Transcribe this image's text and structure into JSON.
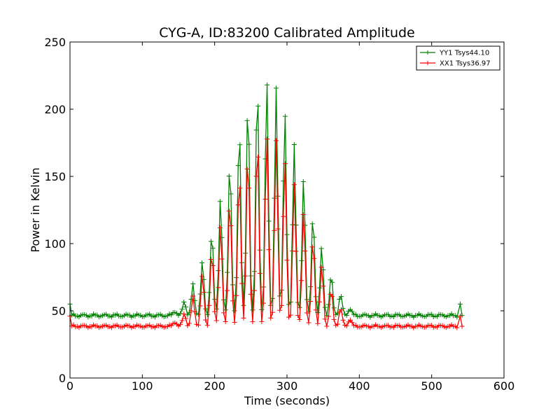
{
  "chart_data": {
    "type": "line",
    "title": "CYG-A, ID:83200 Calibrated Amplitude",
    "xlabel": "Time (seconds)",
    "ylabel": "Power in Kelvin",
    "xlim": [
      0,
      600
    ],
    "ylim": [
      0,
      250
    ],
    "xticks": [
      "0",
      "100",
      "200",
      "300",
      "400",
      "500",
      "600"
    ],
    "yticks": [
      "0",
      "50",
      "100",
      "150",
      "200",
      "250"
    ],
    "grid": false,
    "legend_position": "top-right",
    "sample_interval_s": 2.5,
    "series": [
      {
        "name": "YY1 Tsys44.10",
        "color": "#008000",
        "baseline": 46.5,
        "start": {
          "x": 0,
          "y": 55
        },
        "end": {
          "x": 537,
          "y": 55
        },
        "peaks": [
          {
            "x": 145,
            "y": 50
          },
          {
            "x": 158,
            "y": 57
          },
          {
            "x": 170,
            "y": 69
          },
          {
            "x": 183,
            "y": 86
          },
          {
            "x": 196,
            "y": 108
          },
          {
            "x": 208,
            "y": 134
          },
          {
            "x": 221,
            "y": 162
          },
          {
            "x": 234,
            "y": 188
          },
          {
            "x": 246,
            "y": 207
          },
          {
            "x": 259,
            "y": 219
          },
          {
            "x": 272,
            "y": 222
          },
          {
            "x": 285,
            "y": 215
          },
          {
            "x": 297,
            "y": 199
          },
          {
            "x": 310,
            "y": 175
          },
          {
            "x": 323,
            "y": 149
          },
          {
            "x": 336,
            "y": 121
          },
          {
            "x": 348,
            "y": 97
          },
          {
            "x": 361,
            "y": 76
          },
          {
            "x": 374,
            "y": 62
          },
          {
            "x": 387,
            "y": 52
          }
        ]
      },
      {
        "name": "XX1 Tsys36.97",
        "color": "#ff0000",
        "baseline": 38.5,
        "start": {
          "x": 0,
          "y": 46
        },
        "end": {
          "x": 537,
          "y": 46
        },
        "peaks": [
          {
            "x": 145,
            "y": 42
          },
          {
            "x": 158,
            "y": 48
          },
          {
            "x": 170,
            "y": 60
          },
          {
            "x": 183,
            "y": 76
          },
          {
            "x": 196,
            "y": 94
          },
          {
            "x": 208,
            "y": 114
          },
          {
            "x": 221,
            "y": 134
          },
          {
            "x": 234,
            "y": 153
          },
          {
            "x": 246,
            "y": 168
          },
          {
            "x": 259,
            "y": 178
          },
          {
            "x": 272,
            "y": 181
          },
          {
            "x": 285,
            "y": 176
          },
          {
            "x": 297,
            "y": 163
          },
          {
            "x": 310,
            "y": 145
          },
          {
            "x": 323,
            "y": 124
          },
          {
            "x": 336,
            "y": 103
          },
          {
            "x": 348,
            "y": 83
          },
          {
            "x": 361,
            "y": 65
          },
          {
            "x": 374,
            "y": 52
          },
          {
            "x": 387,
            "y": 44
          }
        ]
      }
    ]
  }
}
